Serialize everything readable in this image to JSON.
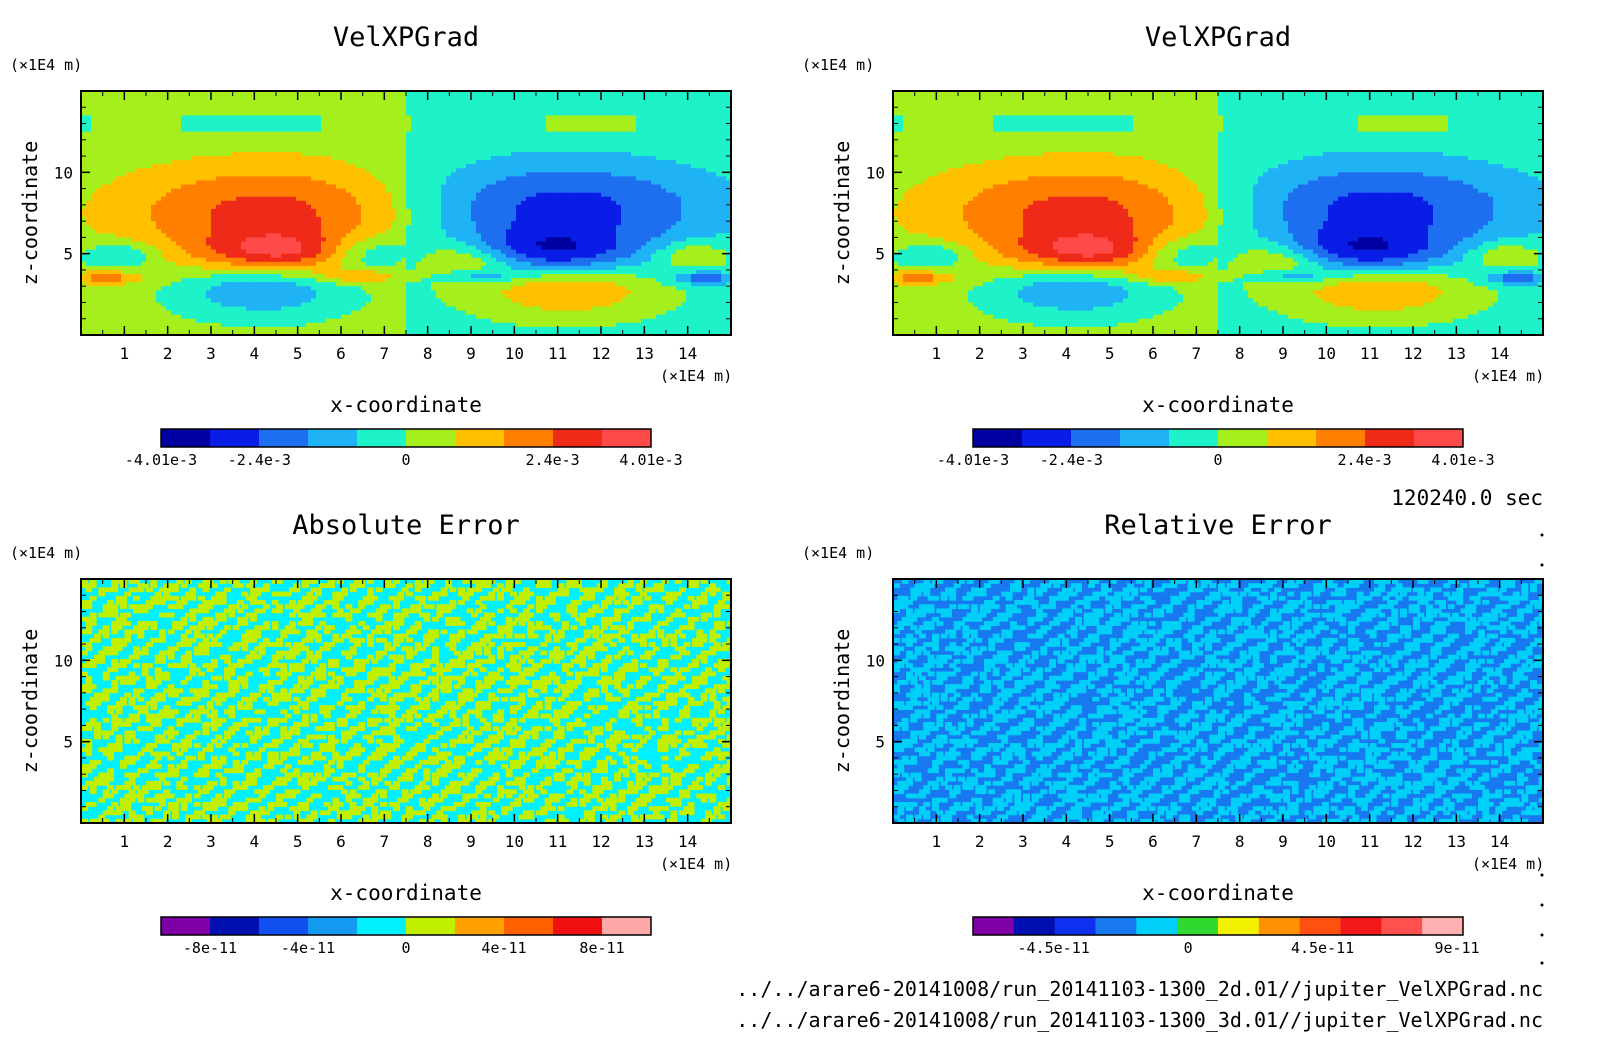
{
  "time_label": "120240.0 sec",
  "file_paths": [
    "../../arare6-20141008/run_20141103-1300_2d.01//jupiter_VelXPGrad.nc",
    "../../arare6-20141008/run_20141103-1300_3d.01//jupiter_VelXPGrad.nc"
  ],
  "colors": {
    "velx": [
      "#0000a0",
      "#0a1de6",
      "#1e6ff0",
      "#1fb3f5",
      "#1ef2c8",
      "#a4ef1c",
      "#ffc000",
      "#ff8000",
      "#f02a18",
      "#ff4a4a"
    ],
    "abs": [
      "#8000a8",
      "#0010b0",
      "#1050f0",
      "#1598f0",
      "#00f0ff",
      "#c0f000",
      "#ffa000",
      "#ff6000",
      "#f01010",
      "#ffa8a8"
    ],
    "rel": [
      "#8000a8",
      "#0010b0",
      "#1030f0",
      "#1878f0",
      "#00d0f8",
      "#30d830",
      "#f0f000",
      "#ff9000",
      "#ff5010",
      "#f01818",
      "#ff5050",
      "#ffb0b0"
    ]
  },
  "chart_data": [
    {
      "type": "heatmap",
      "title": "VelXPGrad",
      "xlabel": "x-coordinate",
      "ylabel": "z-coordinate",
      "x_unit": "(×1E4 m)",
      "z_unit": "(×1E4 m)",
      "xlim": [
        0,
        15
      ],
      "ylim": [
        0,
        15
      ],
      "xticks": [
        1,
        2,
        3,
        4,
        5,
        6,
        7,
        8,
        9,
        10,
        11,
        12,
        13,
        14
      ],
      "yticks": [
        5,
        10
      ],
      "colorbar": {
        "min": -0.00401,
        "max": 0.00401,
        "ticks": [
          {
            "v": -0.00401,
            "label": "-4.01e-3"
          },
          {
            "v": -0.0024,
            "label": "-2.4e-3"
          },
          {
            "v": 0,
            "label": "0"
          },
          {
            "v": 0.0024,
            "label": "2.4e-3"
          },
          {
            "v": 0.00401,
            "label": "4.01e-3"
          }
        ]
      },
      "palette": "velx",
      "field": "velx"
    },
    {
      "type": "heatmap",
      "title": "VelXPGrad",
      "xlabel": "x-coordinate",
      "ylabel": "z-coordinate",
      "x_unit": "(×1E4 m)",
      "z_unit": "(×1E4 m)",
      "xlim": [
        0,
        15
      ],
      "ylim": [
        0,
        15
      ],
      "xticks": [
        1,
        2,
        3,
        4,
        5,
        6,
        7,
        8,
        9,
        10,
        11,
        12,
        13,
        14
      ],
      "yticks": [
        5,
        10
      ],
      "colorbar": {
        "min": -0.00401,
        "max": 0.00401,
        "ticks": [
          {
            "v": -0.00401,
            "label": "-4.01e-3"
          },
          {
            "v": -0.0024,
            "label": "-2.4e-3"
          },
          {
            "v": 0,
            "label": "0"
          },
          {
            "v": 0.0024,
            "label": "2.4e-3"
          },
          {
            "v": 0.00401,
            "label": "4.01e-3"
          }
        ]
      },
      "palette": "velx",
      "field": "velx"
    },
    {
      "type": "heatmap",
      "title": "Absolute Error",
      "xlabel": "x-coordinate",
      "ylabel": "z-coordinate",
      "x_unit": "(×1E4 m)",
      "z_unit": "(×1E4 m)",
      "xlim": [
        0,
        15
      ],
      "ylim": [
        0,
        15
      ],
      "xticks": [
        1,
        2,
        3,
        4,
        5,
        6,
        7,
        8,
        9,
        10,
        11,
        12,
        13,
        14
      ],
      "yticks": [
        5,
        10
      ],
      "colorbar": {
        "min": -1e-10,
        "max": 1e-10,
        "ticks": [
          {
            "v": -8e-11,
            "label": "-8e-11"
          },
          {
            "v": -4e-11,
            "label": "-4e-11"
          },
          {
            "v": 0,
            "label": "0"
          },
          {
            "v": 4e-11,
            "label": "4e-11"
          },
          {
            "v": 8e-11,
            "label": "8e-11"
          }
        ]
      },
      "palette": "abs",
      "field": "noise_abs"
    },
    {
      "type": "heatmap",
      "title": "Relative Error",
      "xlabel": "x-coordinate",
      "ylabel": "z-coordinate",
      "x_unit": "(×1E4 m)",
      "z_unit": "(×1E4 m)",
      "xlim": [
        0,
        15
      ],
      "ylim": [
        0,
        15
      ],
      "xticks": [
        1,
        2,
        3,
        4,
        5,
        6,
        7,
        8,
        9,
        10,
        11,
        12,
        13,
        14
      ],
      "yticks": [
        5,
        10
      ],
      "colorbar": {
        "min": -7.2e-11,
        "max": 9.2e-11,
        "ticks": [
          {
            "v": -4.5e-11,
            "label": "-4.5e-11"
          },
          {
            "v": 0,
            "label": "0"
          },
          {
            "v": 4.5e-11,
            "label": "4.5e-11"
          },
          {
            "v": 9e-11,
            "label": "9e-11"
          }
        ]
      },
      "palette": "rel",
      "field": "noise_rel"
    }
  ]
}
